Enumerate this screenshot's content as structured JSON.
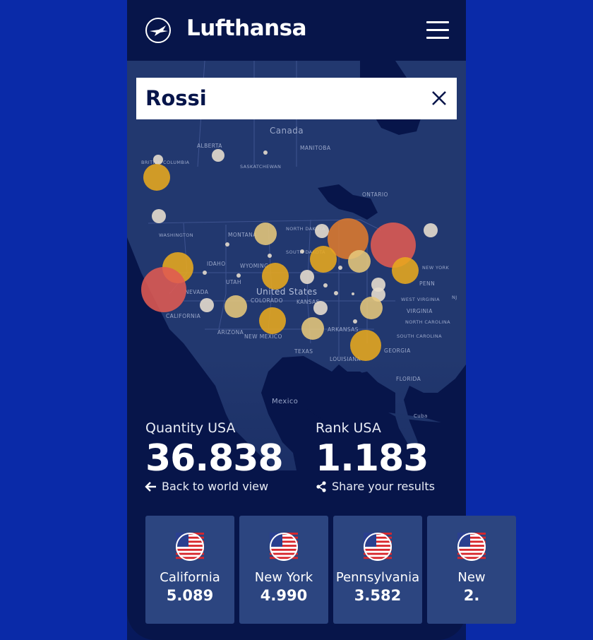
{
  "brand": {
    "name": "Lufthansa"
  },
  "search": {
    "value": "Rossi"
  },
  "map": {
    "labels": {
      "canada": "Canada",
      "alberta": "ALBERTA",
      "british_columbia": "BRITISH COLUMBIA",
      "saskatchewan": "SASKATCHEWAN",
      "manitoba": "MANITOBA",
      "ontario": "ONTARIO",
      "washington": "WASHINGTON",
      "montana": "MONTANA",
      "north_dakota": "NORTH DAKOTA",
      "south_dakota": "SOUTH DAKOTA",
      "idaho": "IDAHO",
      "wyoming": "WYOMING",
      "nevada": "NEVADA",
      "utah": "UTAH",
      "colorado": "COLORADO",
      "california": "CALIFORNIA",
      "arizona": "ARIZONA",
      "new_mexico": "NEW MEXICO",
      "texas": "TEXAS",
      "kansas": "KANSAS",
      "arkansas": "ARKANSAS",
      "louisiana": "LOUISIANA",
      "united_states": "United States",
      "new_york": "NEW YORK",
      "penn": "PENN",
      "west_virginia": "WEST VIRGINIA",
      "virginia": "VIRGINIA",
      "north_carolina": "NORTH CAROLINA",
      "south_carolina": "SOUTH CAROLINA",
      "georgia": "GEORGIA",
      "florida": "FLORIDA",
      "mexico": "Mexico",
      "cuba": "Cuba",
      "nj": "NJ"
    },
    "colors": {
      "high": "#e05a52",
      "orange": "#de7a2e",
      "gold": "#e8a91e",
      "tan": "#e6c77b",
      "pale": "#e4dccd"
    }
  },
  "stats": {
    "quantity_label": "Quantity USA",
    "quantity_value": "36.838",
    "rank_label": "Rank USA",
    "rank_value": "1.183",
    "back_link": "Back to world view",
    "share_link": "Share your results"
  },
  "cards": [
    {
      "name": "California",
      "value": "5.089"
    },
    {
      "name": "New York",
      "value": "4.990"
    },
    {
      "name": "Pennsylvania",
      "value": "3.582"
    },
    {
      "name": "New",
      "value": "2."
    }
  ]
}
